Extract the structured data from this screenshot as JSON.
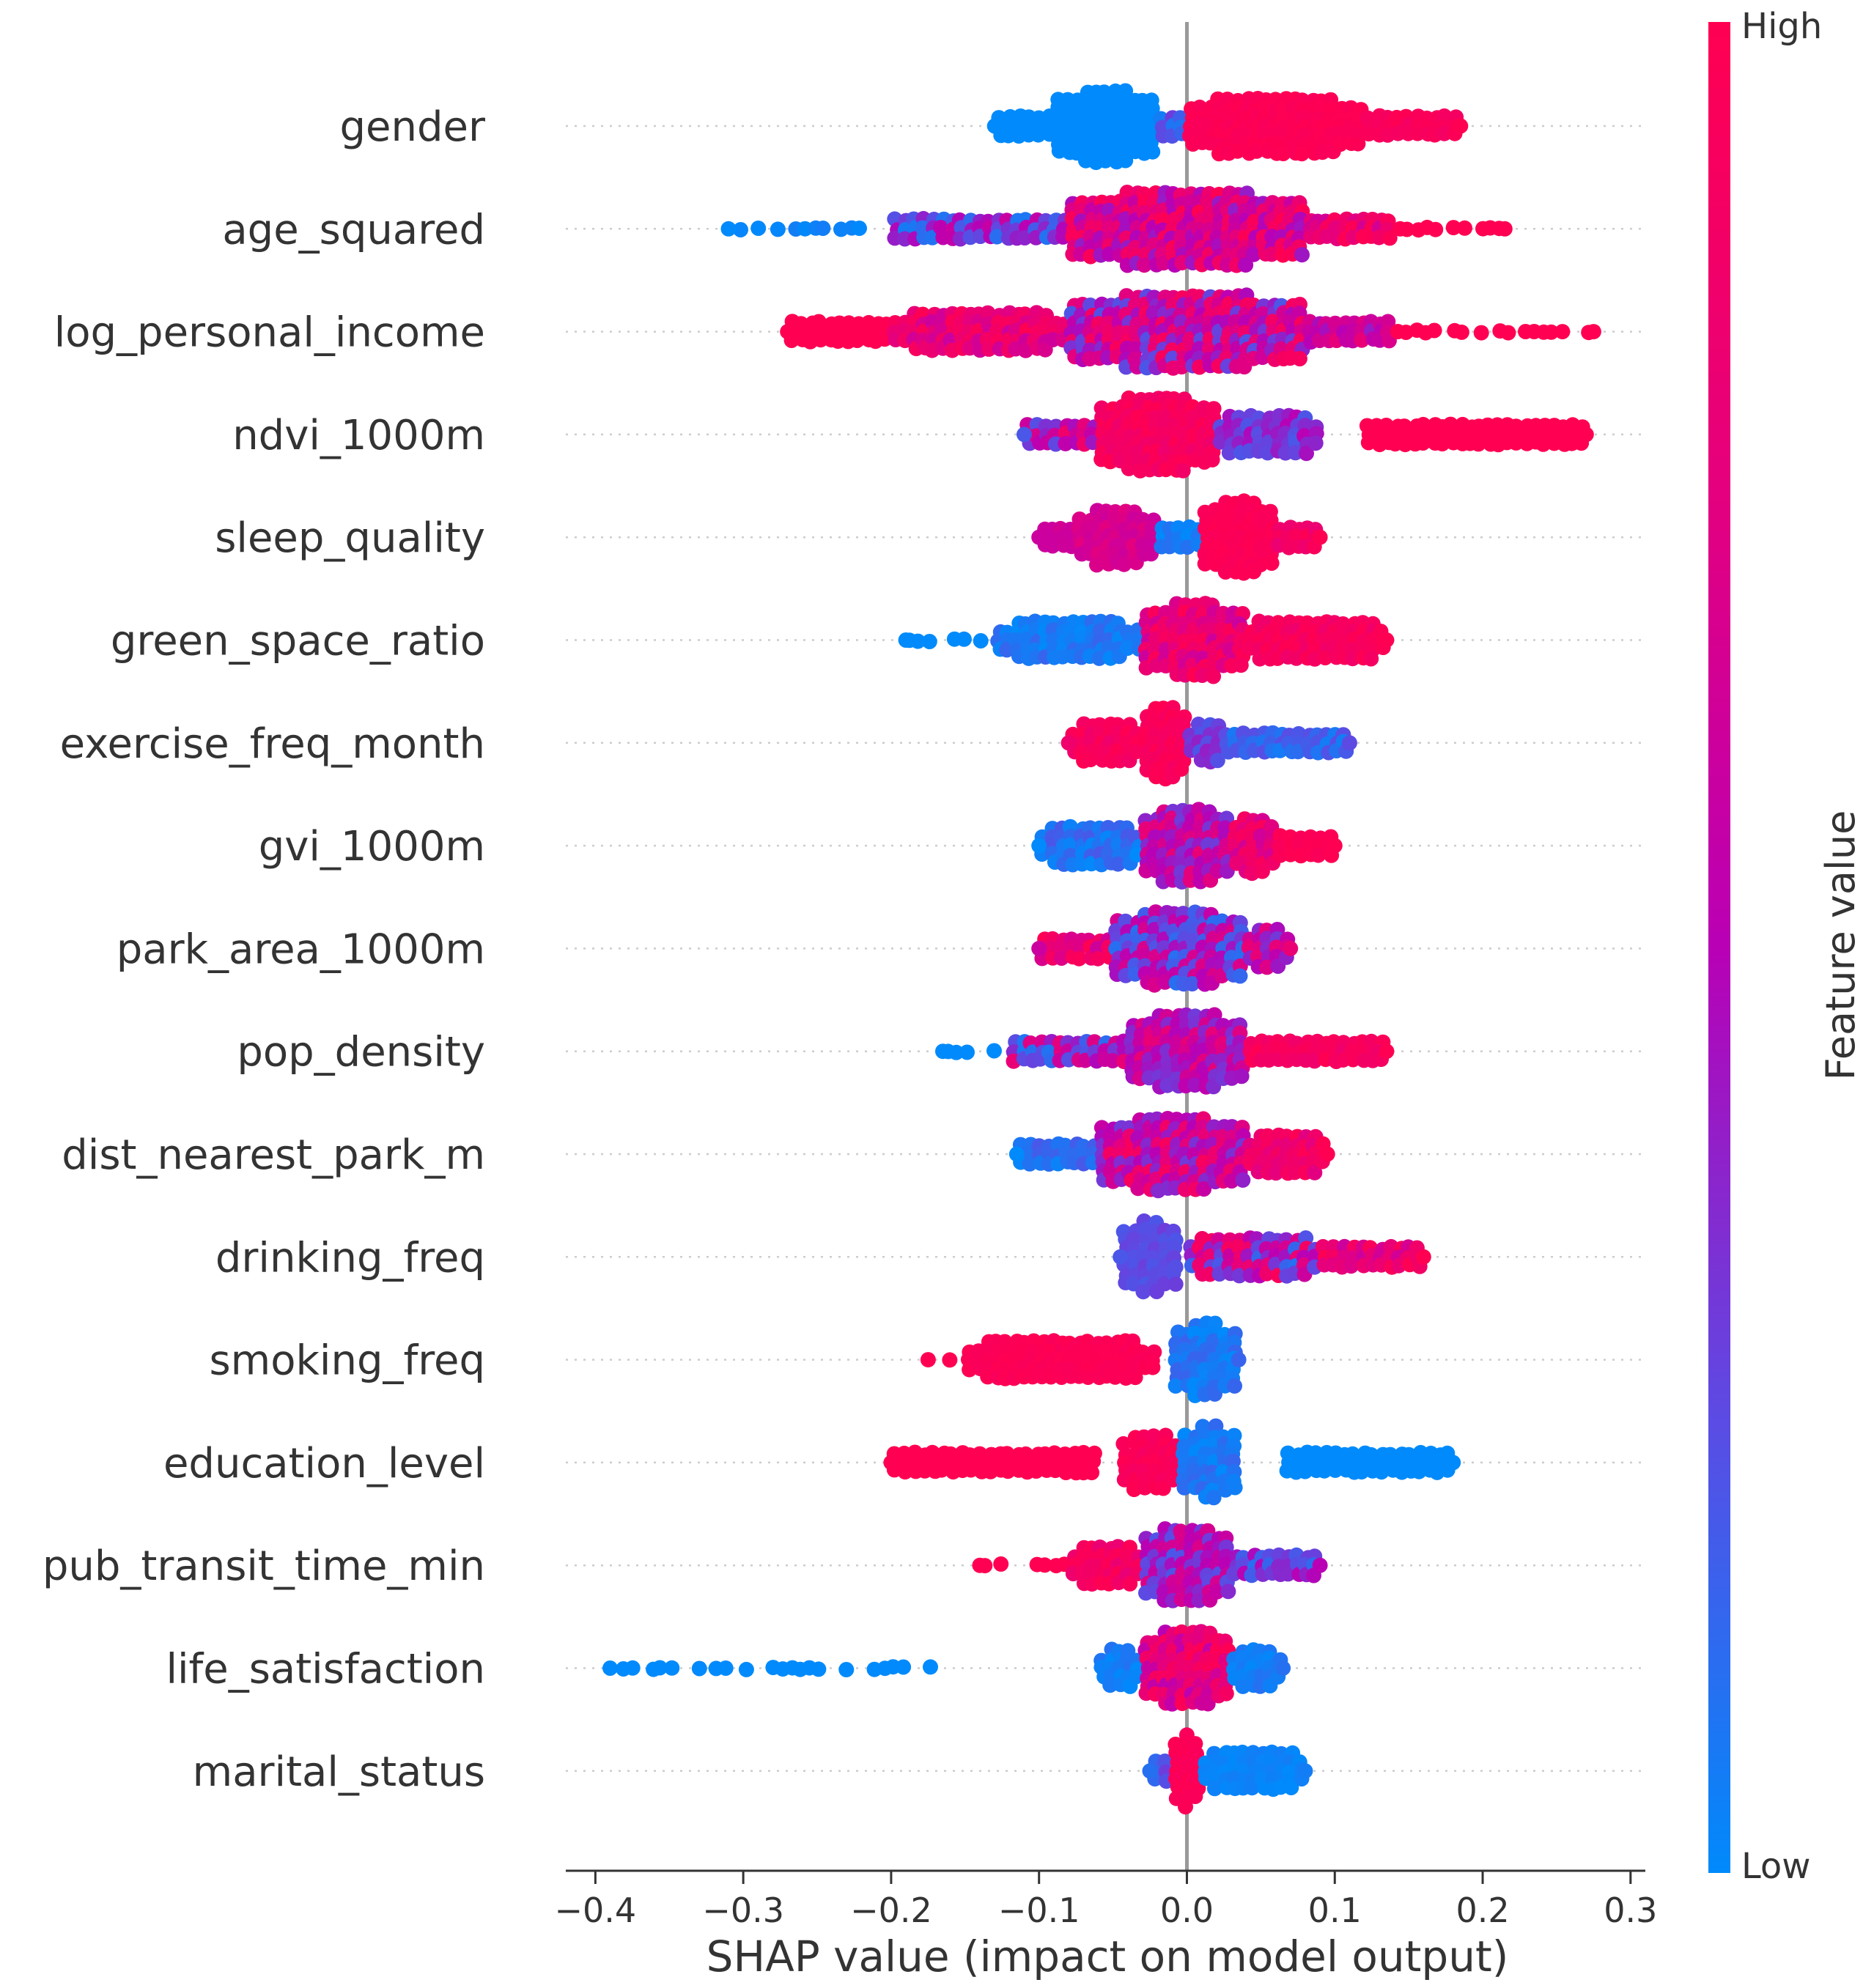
{
  "chart_data": {
    "type": "scatter",
    "subtype": "shap-beeswarm",
    "title": "",
    "xlabel": "SHAP value (impact on model output)",
    "ylabel": "",
    "xlim": [
      -0.42,
      0.31
    ],
    "xticks": [
      -0.4,
      -0.3,
      -0.2,
      -0.1,
      0.0,
      0.1,
      0.2,
      0.3
    ],
    "xtick_labels": [
      "−0.4",
      "−0.3",
      "−0.2",
      "−0.1",
      "0.0",
      "0.1",
      "0.2",
      "0.3"
    ],
    "grid": false,
    "legend": "colorbar-right",
    "colorbar": {
      "title": "Feature value",
      "high_label": "High",
      "low_label": "Low",
      "colors": [
        "#008afb",
        "#5d4ae3",
        "#b900b5",
        "#e5007d",
        "#ff0052"
      ]
    },
    "features": [
      {
        "name": "gender",
        "min": -0.13,
        "max": 0.185,
        "segments": [
          {
            "x0": -0.13,
            "x1": -0.09,
            "c0": 0.0,
            "c1": 0.0,
            "d": 0.3
          },
          {
            "x0": -0.09,
            "x1": -0.02,
            "c0": 0.0,
            "c1": 0.0,
            "d": 1.0
          },
          {
            "x0": -0.02,
            "x1": 0.0,
            "c0": 0.05,
            "c1": 0.3,
            "d": 0.2
          },
          {
            "x0": 0.0,
            "x1": 0.12,
            "c0": 0.95,
            "c1": 1.0,
            "d": 0.85
          },
          {
            "x0": 0.12,
            "x1": 0.185,
            "c0": 0.9,
            "c1": 1.0,
            "d": 0.35
          }
        ]
      },
      {
        "name": "age_squared",
        "min": -0.31,
        "max": 0.215,
        "segments": [
          {
            "x0": -0.31,
            "x1": -0.2,
            "c0": 0.0,
            "c1": 0.05,
            "d": 0.05
          },
          {
            "x0": -0.2,
            "x1": -0.08,
            "c0": 0.05,
            "c1": 0.6,
            "d": 0.3
          },
          {
            "x0": -0.08,
            "x1": 0.08,
            "c0": 0.4,
            "c1": 1.0,
            "d": 1.0
          },
          {
            "x0": 0.08,
            "x1": 0.14,
            "c0": 0.6,
            "c1": 1.0,
            "d": 0.3
          },
          {
            "x0": 0.14,
            "x1": 0.215,
            "c0": 1.0,
            "c1": 1.0,
            "d": 0.05
          }
        ]
      },
      {
        "name": "log_personal_income",
        "min": -0.27,
        "max": 0.275,
        "segments": [
          {
            "x0": -0.27,
            "x1": -0.2,
            "c0": 1.0,
            "c1": 1.0,
            "d": 0.15
          },
          {
            "x0": -0.2,
            "x1": -0.08,
            "c0": 0.6,
            "c1": 1.0,
            "d": 0.4
          },
          {
            "x0": -0.08,
            "x1": 0.08,
            "c0": 0.2,
            "c1": 0.95,
            "d": 1.0
          },
          {
            "x0": 0.08,
            "x1": 0.14,
            "c0": 0.4,
            "c1": 0.8,
            "d": 0.15
          },
          {
            "x0": 0.14,
            "x1": 0.275,
            "c0": 1.0,
            "c1": 1.0,
            "d": 0.05
          }
        ]
      },
      {
        "name": "ndvi_1000m",
        "min": -0.11,
        "max": 0.27,
        "segments": [
          {
            "x0": -0.11,
            "x1": -0.06,
            "c0": 0.2,
            "c1": 0.9,
            "d": 0.3
          },
          {
            "x0": -0.06,
            "x1": 0.02,
            "c0": 0.85,
            "c1": 1.0,
            "d": 1.0
          },
          {
            "x0": 0.02,
            "x1": 0.09,
            "c0": 0.2,
            "c1": 0.5,
            "d": 0.45
          },
          {
            "x0": 0.12,
            "x1": 0.27,
            "c0": 1.0,
            "c1": 1.0,
            "d": 0.25
          }
        ]
      },
      {
        "name": "sleep_quality",
        "min": -0.1,
        "max": 0.09,
        "segments": [
          {
            "x0": -0.1,
            "x1": -0.075,
            "c0": 0.6,
            "c1": 0.65,
            "d": 0.2
          },
          {
            "x0": -0.075,
            "x1": -0.02,
            "c0": 0.6,
            "c1": 0.75,
            "d": 0.8
          },
          {
            "x0": -0.02,
            "x1": 0.01,
            "c0": 0.0,
            "c1": 0.1,
            "d": 0.25
          },
          {
            "x0": 0.01,
            "x1": 0.06,
            "c0": 0.95,
            "c1": 1.0,
            "d": 1.0
          },
          {
            "x0": 0.06,
            "x1": 0.09,
            "c0": 0.8,
            "c1": 1.0,
            "d": 0.3
          }
        ]
      },
      {
        "name": "green_space_ratio",
        "min": -0.19,
        "max": 0.135,
        "segments": [
          {
            "x0": -0.19,
            "x1": -0.13,
            "c0": 0.0,
            "c1": 0.0,
            "d": 0.1
          },
          {
            "x0": -0.13,
            "x1": -0.03,
            "c0": 0.0,
            "c1": 0.15,
            "d": 0.45
          },
          {
            "x0": -0.03,
            "x1": 0.04,
            "c0": 0.6,
            "c1": 1.0,
            "d": 1.0
          },
          {
            "x0": 0.04,
            "x1": 0.135,
            "c0": 0.85,
            "c1": 1.0,
            "d": 0.4
          }
        ]
      },
      {
        "name": "exercise_freq_month",
        "min": -0.08,
        "max": 0.11,
        "segments": [
          {
            "x0": -0.08,
            "x1": -0.03,
            "c0": 0.85,
            "c1": 1.0,
            "d": 0.6
          },
          {
            "x0": -0.03,
            "x1": 0.0,
            "c0": 0.9,
            "c1": 1.0,
            "d": 1.0
          },
          {
            "x0": 0.0,
            "x1": 0.03,
            "c0": 0.2,
            "c1": 0.4,
            "d": 0.4
          },
          {
            "x0": 0.03,
            "x1": 0.11,
            "c0": 0.05,
            "c1": 0.25,
            "d": 0.35
          }
        ]
      },
      {
        "name": "gvi_1000m",
        "min": -0.1,
        "max": 0.1,
        "segments": [
          {
            "x0": -0.1,
            "x1": -0.03,
            "c0": 0.0,
            "c1": 0.2,
            "d": 0.55
          },
          {
            "x0": -0.03,
            "x1": 0.03,
            "c0": 0.3,
            "c1": 0.8,
            "d": 1.0
          },
          {
            "x0": 0.03,
            "x1": 0.06,
            "c0": 0.6,
            "c1": 0.95,
            "d": 0.7
          },
          {
            "x0": 0.06,
            "x1": 0.1,
            "c0": 0.95,
            "c1": 1.0,
            "d": 0.3
          }
        ]
      },
      {
        "name": "park_area_1000m",
        "min": -0.1,
        "max": 0.07,
        "segments": [
          {
            "x0": -0.1,
            "x1": -0.05,
            "c0": 0.6,
            "c1": 1.0,
            "d": 0.35
          },
          {
            "x0": -0.05,
            "x1": 0.04,
            "c0": 0.1,
            "c1": 0.7,
            "d": 1.0
          },
          {
            "x0": 0.04,
            "x1": 0.07,
            "c0": 0.3,
            "c1": 0.8,
            "d": 0.4
          }
        ]
      },
      {
        "name": "pop_density",
        "min": -0.165,
        "max": 0.135,
        "segments": [
          {
            "x0": -0.165,
            "x1": -0.12,
            "c0": 0.0,
            "c1": 0.0,
            "d": 0.1
          },
          {
            "x0": -0.12,
            "x1": -0.04,
            "c0": 0.05,
            "c1": 0.8,
            "d": 0.35
          },
          {
            "x0": -0.04,
            "x1": 0.04,
            "c0": 0.3,
            "c1": 0.8,
            "d": 1.0
          },
          {
            "x0": 0.04,
            "x1": 0.135,
            "c0": 0.85,
            "c1": 1.0,
            "d": 0.35
          }
        ]
      },
      {
        "name": "dist_nearest_park_m",
        "min": -0.115,
        "max": 0.095,
        "segments": [
          {
            "x0": -0.115,
            "x1": -0.06,
            "c0": 0.0,
            "c1": 0.2,
            "d": 0.35
          },
          {
            "x0": -0.06,
            "x1": 0.04,
            "c0": 0.3,
            "c1": 0.95,
            "d": 1.0
          },
          {
            "x0": 0.04,
            "x1": 0.095,
            "c0": 0.7,
            "c1": 1.0,
            "d": 0.4
          }
        ]
      },
      {
        "name": "drinking_freq",
        "min": -0.045,
        "max": 0.16,
        "segments": [
          {
            "x0": -0.045,
            "x1": -0.005,
            "c0": 0.2,
            "c1": 0.3,
            "d": 1.0
          },
          {
            "x0": 0.0,
            "x1": 0.09,
            "c0": 0.1,
            "c1": 0.95,
            "d": 0.4
          },
          {
            "x0": 0.09,
            "x1": 0.16,
            "c0": 0.6,
            "c1": 1.0,
            "d": 0.15
          }
        ]
      },
      {
        "name": "smoking_freq",
        "min": -0.175,
        "max": 0.035,
        "segments": [
          {
            "x0": -0.175,
            "x1": -0.15,
            "c0": 1.0,
            "c1": 1.0,
            "d": 0.05
          },
          {
            "x0": -0.15,
            "x1": -0.02,
            "c0": 0.95,
            "c1": 1.0,
            "d": 0.45
          },
          {
            "x0": -0.01,
            "x1": 0.035,
            "c0": 0.0,
            "c1": 0.15,
            "d": 1.0
          }
        ]
      },
      {
        "name": "education_level",
        "min": -0.2,
        "max": 0.18,
        "segments": [
          {
            "x0": -0.2,
            "x1": -0.06,
            "c0": 1.0,
            "c1": 1.0,
            "d": 0.15
          },
          {
            "x0": -0.045,
            "x1": -0.005,
            "c0": 0.9,
            "c1": 1.0,
            "d": 0.7
          },
          {
            "x0": -0.005,
            "x1": 0.035,
            "c0": 0.0,
            "c1": 0.15,
            "d": 1.0
          },
          {
            "x0": 0.065,
            "x1": 0.18,
            "c0": 0.0,
            "c1": 0.0,
            "d": 0.15
          }
        ]
      },
      {
        "name": "pub_transit_time_min",
        "min": -0.14,
        "max": 0.09,
        "segments": [
          {
            "x0": -0.14,
            "x1": -0.08,
            "c0": 1.0,
            "c1": 1.0,
            "d": 0.1
          },
          {
            "x0": -0.08,
            "x1": -0.03,
            "c0": 0.8,
            "c1": 1.0,
            "d": 0.45
          },
          {
            "x0": -0.03,
            "x1": 0.03,
            "c0": 0.2,
            "c1": 0.7,
            "d": 1.0
          },
          {
            "x0": 0.03,
            "x1": 0.09,
            "c0": 0.1,
            "c1": 0.5,
            "d": 0.35
          }
        ]
      },
      {
        "name": "life_satisfaction",
        "min": -0.39,
        "max": 0.065,
        "segments": [
          {
            "x0": -0.39,
            "x1": -0.17,
            "c0": 0.0,
            "c1": 0.0,
            "d": 0.04
          },
          {
            "x0": -0.06,
            "x1": -0.03,
            "c0": 0.0,
            "c1": 0.1,
            "d": 0.4
          },
          {
            "x0": -0.03,
            "x1": 0.03,
            "c0": 0.5,
            "c1": 1.0,
            "d": 1.0
          },
          {
            "x0": 0.03,
            "x1": 0.065,
            "c0": 0.0,
            "c1": 0.1,
            "d": 0.4
          }
        ]
      },
      {
        "name": "marital_status",
        "min": -0.025,
        "max": 0.08,
        "segments": [
          {
            "x0": -0.025,
            "x1": -0.01,
            "c0": 0.1,
            "c1": 0.3,
            "d": 0.3
          },
          {
            "x0": -0.01,
            "x1": 0.01,
            "c0": 0.95,
            "c1": 1.0,
            "d": 1.0
          },
          {
            "x0": 0.01,
            "x1": 0.08,
            "c0": 0.0,
            "c1": 0.05,
            "d": 0.45
          }
        ]
      }
    ]
  }
}
